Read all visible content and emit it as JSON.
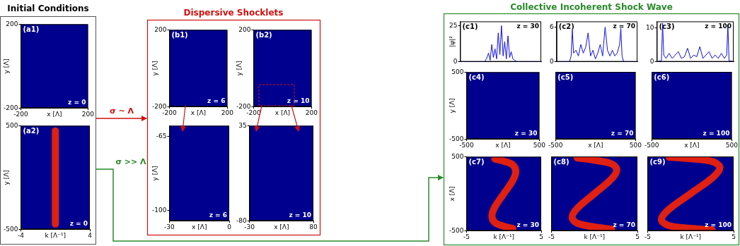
{
  "titles": {
    "initial": "Initial Conditions",
    "shocklets": "Dispersive Shocklets",
    "shock": "Collective Incoherent Shock Wave"
  },
  "arrows": {
    "red": "σ ~ Λ",
    "green": "σ >> Λ"
  },
  "chart_data": [
    {
      "type": "image",
      "title": "(a1)",
      "annotations": [
        "z = 0"
      ],
      "xlabel": "x [Λ]",
      "ylabel": "y [Λ]",
      "xlim": [
        -200,
        200
      ],
      "xticks": [
        -200,
        200
      ],
      "ylim": [
        -200,
        200
      ],
      "yticks": [
        -200,
        200
      ]
    },
    {
      "type": "ridge",
      "title": "(a2)",
      "annotations": [
        "z = 0"
      ],
      "xlabel": "k [Λ⁻¹]",
      "ylabel": "y [Λ]",
      "xlim": [
        -4,
        4
      ],
      "xticks": [
        -4,
        4
      ],
      "ylim": [
        -500,
        500
      ],
      "yticks": [
        -500,
        500
      ],
      "x": [
        0,
        0,
        0
      ],
      "values": [
        -450,
        0,
        450
      ],
      "color": "#e02010"
    },
    {
      "type": "image",
      "title": "(b1)",
      "annotations": [
        "z = 6"
      ],
      "xlabel": "x [Λ]",
      "ylabel": "y [Λ]",
      "xlim": [
        -200,
        200
      ],
      "xticks": [
        -200,
        200
      ],
      "ylim": [
        -200,
        200
      ],
      "yticks": [
        -200,
        200
      ]
    },
    {
      "type": "image",
      "title": "(b2)",
      "annotations": [
        "z = 10"
      ],
      "xlabel": "x [Λ]",
      "ylabel": "y [Λ]",
      "xlim": [
        -200,
        200
      ],
      "xticks": [
        -200,
        200
      ],
      "ylim": [
        -200,
        200
      ],
      "yticks": [
        -200,
        200
      ]
    },
    {
      "type": "image",
      "annotations": [
        "z = 6"
      ],
      "xlabel": "x [Λ]",
      "ylabel": "y [Λ]",
      "xlim": [
        -30,
        0
      ],
      "xticks": [
        -30,
        0
      ],
      "ylim": [
        -105,
        -60
      ],
      "yticks": [
        -100,
        -65
      ]
    },
    {
      "type": "image",
      "annotations": [
        "z = 10"
      ],
      "xlabel": "x [Λ]",
      "xlim": [
        -30,
        80
      ],
      "xticks": [
        -30,
        80
      ],
      "ylim": [
        -80,
        35
      ],
      "yticks": [
        -80,
        35
      ]
    },
    {
      "type": "line",
      "title": "(c1)",
      "annotations": [
        "z = 30"
      ],
      "ylabel": "|ψ|²",
      "tick_labels": "y",
      "xlim": [
        -500,
        500
      ],
      "ylim": [
        0,
        28
      ],
      "yticks": [
        0,
        25
      ],
      "color": "#1010e0",
      "x": [
        -500,
        -200,
        -175,
        -150,
        -130,
        -110,
        -90,
        -70,
        -50,
        -30,
        -10,
        10,
        30,
        50,
        70,
        90,
        110,
        130,
        150,
        175,
        200,
        500
      ],
      "values": [
        0,
        0,
        2,
        6,
        1,
        12,
        3,
        9,
        2,
        20,
        5,
        25,
        4,
        14,
        2,
        18,
        3,
        7,
        2,
        1,
        0,
        0
      ]
    },
    {
      "type": "line",
      "title": "(c2)",
      "annotations": [
        "z = 70"
      ],
      "tick_labels": "y",
      "xlim": [
        -500,
        500
      ],
      "ylim": [
        0,
        7
      ],
      "yticks": [
        0,
        6
      ],
      "color": "#1010e0",
      "x": [
        -500,
        -340,
        -320,
        -305,
        -290,
        -260,
        -230,
        -200,
        -170,
        -140,
        -110,
        -80,
        -50,
        -20,
        10,
        40,
        70,
        100,
        130,
        160,
        190,
        220,
        250,
        280,
        295,
        310,
        330,
        500
      ],
      "values": [
        0,
        0,
        1,
        5.5,
        1.5,
        2,
        1,
        3,
        1.5,
        2.5,
        5,
        1,
        2,
        0.5,
        1.5,
        3,
        1,
        6,
        2,
        1,
        2,
        1,
        1.5,
        3,
        5.8,
        1,
        0,
        0
      ]
    },
    {
      "type": "line",
      "title": "(c3)",
      "annotations": [
        "z = 100"
      ],
      "tick_labels": "y",
      "xlim": [
        -500,
        500
      ],
      "ylim": [
        0,
        12
      ],
      "yticks": [
        0,
        10
      ],
      "color": "#1010e0",
      "x": [
        -500,
        -440,
        -425,
        -410,
        -380,
        -340,
        -300,
        -260,
        -220,
        -180,
        -140,
        -100,
        -60,
        -20,
        20,
        60,
        100,
        140,
        180,
        220,
        260,
        300,
        340,
        380,
        410,
        425,
        440,
        500
      ],
      "values": [
        0,
        0.3,
        11.5,
        2,
        1,
        2.5,
        1,
        2,
        3,
        1,
        1.5,
        4,
        1,
        2,
        1.5,
        4.5,
        1,
        2,
        3,
        1,
        2,
        1,
        2.5,
        1,
        2,
        11,
        0.3,
        0
      ]
    },
    {
      "type": "image",
      "title": "(c4)",
      "annotations": [
        "z = 30"
      ],
      "xlabel": "x [Λ]",
      "ylabel": "y [Λ]",
      "xlim": [
        -500,
        500
      ],
      "xticks": [
        -500,
        500
      ],
      "ylim": [
        -500,
        500
      ],
      "yticks": [
        -500,
        500
      ]
    },
    {
      "type": "image",
      "title": "(c5)",
      "annotations": [
        "z = 70"
      ],
      "xlabel": "x [Λ]",
      "tick_labels": "x",
      "xlim": [
        -500,
        500
      ],
      "xticks": [
        -500,
        500
      ],
      "ylim": [
        -500,
        500
      ]
    },
    {
      "type": "image",
      "title": "(c6)",
      "annotations": [
        "z = 100"
      ],
      "xlabel": "x [Λ]",
      "tick_labels": "x",
      "xlim": [
        -500,
        500
      ],
      "xticks": [
        -500,
        500
      ],
      "ylim": [
        -500,
        500
      ]
    },
    {
      "type": "ridge",
      "title": "(c7)",
      "annotations": [
        "z = 30"
      ],
      "xlabel": "k [Λ⁻¹]",
      "ylabel": "x [Λ]",
      "xlim": [
        -5,
        5
      ],
      "xticks": [
        -5,
        5
      ],
      "ylim": [
        -500,
        500
      ],
      "yticks": [
        -500,
        500
      ],
      "color": "#e02010",
      "x": [
        -1.2,
        0,
        1.2,
        1.6,
        1.2,
        0,
        -1.2,
        -1.6,
        -1.2,
        0,
        1.2
      ],
      "values": [
        470,
        440,
        390,
        300,
        180,
        0,
        -180,
        -300,
        -390,
        -440,
        -470
      ]
    },
    {
      "type": "ridge",
      "title": "(c8)",
      "annotations": [
        "z = 70"
      ],
      "xlabel": "k [Λ⁻¹]",
      "tick_labels": "x",
      "xlim": [
        -5,
        5
      ],
      "xticks": [
        -5,
        5
      ],
      "ylim": [
        -500,
        500
      ],
      "color": "#e02010",
      "x": [
        -2,
        0,
        2,
        2.6,
        2,
        0,
        -2,
        -2.6,
        -2,
        0,
        2
      ],
      "values": [
        480,
        450,
        400,
        320,
        200,
        0,
        -200,
        -320,
        -400,
        -450,
        -480
      ]
    },
    {
      "type": "ridge",
      "title": "(c9)",
      "annotations": [
        "z = 100"
      ],
      "xlabel": "k [Λ⁻¹]",
      "tick_labels": "x",
      "xlim": [
        -5,
        5
      ],
      "xticks": [
        -5,
        5
      ],
      "ylim": [
        -500,
        500
      ],
      "color": "#e02010",
      "x": [
        -2.5,
        0,
        2.6,
        3.4,
        2.6,
        0,
        -2.6,
        -3.4,
        -2.6,
        0,
        2.5
      ],
      "values": [
        490,
        470,
        430,
        350,
        220,
        0,
        -220,
        -350,
        -430,
        -470,
        -490
      ]
    }
  ]
}
